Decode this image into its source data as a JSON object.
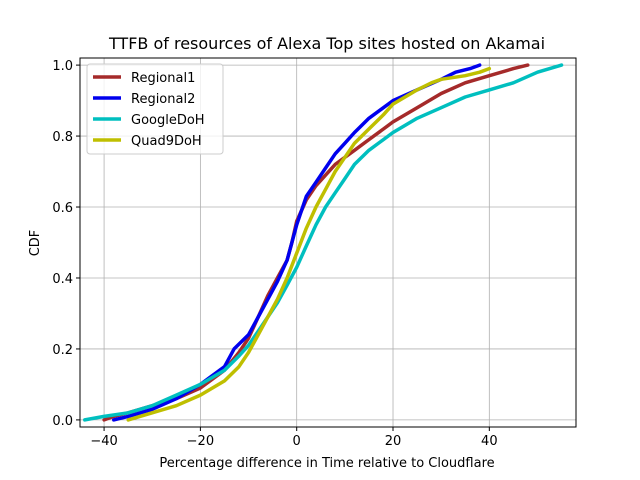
{
  "chart_data": {
    "type": "line",
    "title": "TTFB of resources of Alexa Top sites hosted on Akamai",
    "xlabel": "Percentage difference in Time relative to Cloudflare",
    "ylabel": "CDF",
    "xlim": [
      -45,
      58
    ],
    "ylim": [
      -0.02,
      1.02
    ],
    "xticks": [
      -40,
      -20,
      0,
      20,
      40
    ],
    "xtick_labels": [
      "−40",
      "−20",
      "0",
      "20",
      "40"
    ],
    "yticks": [
      0.0,
      0.2,
      0.4,
      0.6,
      0.8,
      1.0
    ],
    "ytick_labels": [
      "0.0",
      "0.2",
      "0.4",
      "0.6",
      "0.8",
      "1.0"
    ],
    "grid": true,
    "legend_position": "top-left",
    "series": [
      {
        "name": "Regional1",
        "color": "#a52a2a",
        "x": [
          -40,
          -38,
          -35,
          -30,
          -25,
          -20,
          -15,
          -12,
          -10,
          -8,
          -6,
          -4,
          -2,
          -1,
          0,
          1,
          2,
          4,
          6,
          8,
          10,
          12,
          15,
          18,
          20,
          25,
          30,
          35,
          40,
          45,
          48
        ],
        "y": [
          0.0,
          0.01,
          0.02,
          0.04,
          0.06,
          0.09,
          0.14,
          0.19,
          0.23,
          0.29,
          0.35,
          0.4,
          0.45,
          0.5,
          0.56,
          0.59,
          0.62,
          0.66,
          0.69,
          0.72,
          0.74,
          0.76,
          0.79,
          0.82,
          0.84,
          0.88,
          0.92,
          0.95,
          0.97,
          0.99,
          1.0
        ]
      },
      {
        "name": "Regional2",
        "color": "#0000ee",
        "x": [
          -38,
          -35,
          -30,
          -25,
          -20,
          -15,
          -13,
          -10,
          -8,
          -6,
          -4,
          -2,
          -1,
          0,
          1,
          2,
          4,
          6,
          8,
          10,
          12,
          15,
          18,
          20,
          25,
          30,
          33,
          36,
          38
        ],
        "y": [
          0.0,
          0.01,
          0.03,
          0.06,
          0.1,
          0.15,
          0.2,
          0.24,
          0.29,
          0.34,
          0.39,
          0.45,
          0.5,
          0.55,
          0.59,
          0.63,
          0.67,
          0.71,
          0.75,
          0.78,
          0.81,
          0.85,
          0.88,
          0.9,
          0.93,
          0.96,
          0.98,
          0.99,
          1.0
        ]
      },
      {
        "name": "GoogleDoH",
        "color": "#00bfbf",
        "x": [
          -44,
          -40,
          -35,
          -30,
          -25,
          -20,
          -15,
          -12,
          -10,
          -8,
          -6,
          -4,
          -2,
          0,
          2,
          4,
          6,
          8,
          10,
          12,
          15,
          18,
          20,
          25,
          30,
          35,
          40,
          45,
          50,
          55
        ],
        "y": [
          0.0,
          0.01,
          0.02,
          0.04,
          0.07,
          0.1,
          0.14,
          0.18,
          0.21,
          0.25,
          0.29,
          0.33,
          0.38,
          0.43,
          0.49,
          0.55,
          0.6,
          0.64,
          0.68,
          0.72,
          0.76,
          0.79,
          0.81,
          0.85,
          0.88,
          0.91,
          0.93,
          0.95,
          0.98,
          1.0
        ]
      },
      {
        "name": "Quad9DoH",
        "color": "#bfbf00",
        "x": [
          -35,
          -30,
          -25,
          -20,
          -15,
          -12,
          -10,
          -8,
          -6,
          -4,
          -2,
          0,
          2,
          4,
          6,
          8,
          10,
          12,
          15,
          18,
          20,
          25,
          28,
          30,
          35,
          38,
          40
        ],
        "y": [
          0.0,
          0.02,
          0.04,
          0.07,
          0.11,
          0.15,
          0.19,
          0.24,
          0.29,
          0.34,
          0.4,
          0.47,
          0.54,
          0.6,
          0.65,
          0.7,
          0.74,
          0.78,
          0.82,
          0.86,
          0.89,
          0.93,
          0.95,
          0.96,
          0.97,
          0.98,
          0.99
        ]
      }
    ]
  }
}
